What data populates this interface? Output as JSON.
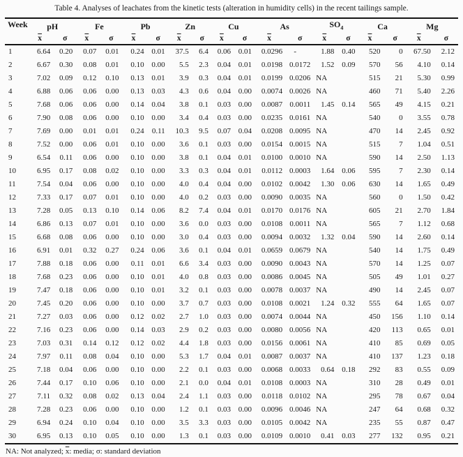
{
  "title": "Table 4. Analyses of leachates from the kinetic tests (alteration in humidity cells) in the recent tailings sample.",
  "table": {
    "week_header": "Week",
    "mean_symbol": "x",
    "sigma_symbol": "σ",
    "na_value": "NA",
    "groups": [
      {
        "label": "pH"
      },
      {
        "label": "Fe"
      },
      {
        "label": "Pb"
      },
      {
        "label": "Zn"
      },
      {
        "label": "Cu"
      },
      {
        "label": "As"
      },
      {
        "label": "SO",
        "subscript": "4"
      },
      {
        "label": "Ca"
      },
      {
        "label": "Mg"
      }
    ],
    "rows": [
      [
        "1",
        "6.64",
        "0.20",
        "0.07",
        "0.01",
        "0.24",
        "0.01",
        "37.5",
        "6.4",
        "0.06",
        "0.01",
        "0.0296",
        "-",
        "1.88",
        "0.40",
        "520",
        "0",
        "67.50",
        "2.12"
      ],
      [
        "2",
        "6.67",
        "0.30",
        "0.08",
        "0.01",
        "0.10",
        "0.00",
        "5.5",
        "2.3",
        "0.04",
        "0.01",
        "0.0198",
        "0.0172",
        "1.52",
        "0.09",
        "570",
        "56",
        "4.10",
        "0.14"
      ],
      [
        "3",
        "7.02",
        "0.09",
        "0.12",
        "0.10",
        "0.13",
        "0.01",
        "3.9",
        "0.3",
        "0.04",
        "0.01",
        "0.0199",
        "0.0206",
        "NA",
        "",
        "515",
        "21",
        "5.30",
        "0.99"
      ],
      [
        "4",
        "6.88",
        "0.06",
        "0.06",
        "0.00",
        "0.13",
        "0.03",
        "4.3",
        "0.6",
        "0.04",
        "0.00",
        "0.0074",
        "0.0026",
        "NA",
        "",
        "460",
        "71",
        "5.40",
        "2.26"
      ],
      [
        "5",
        "7.68",
        "0.06",
        "0.06",
        "0.00",
        "0.14",
        "0.04",
        "3.8",
        "0.1",
        "0.03",
        "0.00",
        "0.0087",
        "0.0011",
        "1.45",
        "0.14",
        "565",
        "49",
        "4.15",
        "0.21"
      ],
      [
        "6",
        "7.90",
        "0.08",
        "0.06",
        "0.00",
        "0.10",
        "0.00",
        "3.4",
        "0.4",
        "0.03",
        "0.00",
        "0.0235",
        "0.0161",
        "NA",
        "",
        "540",
        "0",
        "3.55",
        "0.78"
      ],
      [
        "7",
        "7.69",
        "0.00",
        "0.01",
        "0.01",
        "0.24",
        "0.11",
        "10.3",
        "9.5",
        "0.07",
        "0.04",
        "0.0208",
        "0.0095",
        "NA",
        "",
        "470",
        "14",
        "2.45",
        "0.92"
      ],
      [
        "8",
        "7.52",
        "0.00",
        "0.06",
        "0.01",
        "0.10",
        "0.00",
        "3.6",
        "0.1",
        "0.03",
        "0.00",
        "0.0154",
        "0.0015",
        "NA",
        "",
        "515",
        "7",
        "1.04",
        "0.51"
      ],
      [
        "9",
        "6.54",
        "0.11",
        "0.06",
        "0.00",
        "0.10",
        "0.00",
        "3.8",
        "0.1",
        "0.04",
        "0.01",
        "0.0100",
        "0.0010",
        "NA",
        "",
        "590",
        "14",
        "2.50",
        "1.13"
      ],
      [
        "10",
        "6.95",
        "0.17",
        "0.08",
        "0.02",
        "0.10",
        "0.00",
        "3.3",
        "0.3",
        "0.04",
        "0.01",
        "0.0112",
        "0.0003",
        "1.64",
        "0.06",
        "595",
        "7",
        "2.30",
        "0.14"
      ],
      [
        "11",
        "7.54",
        "0.04",
        "0.06",
        "0.00",
        "0.10",
        "0.00",
        "4.0",
        "0.4",
        "0.04",
        "0.00",
        "0.0102",
        "0.0042",
        "1.30",
        "0.06",
        "630",
        "14",
        "1.65",
        "0.49"
      ],
      [
        "12",
        "7.33",
        "0.17",
        "0.07",
        "0.01",
        "0.10",
        "0.00",
        "4.0",
        "0.2",
        "0.03",
        "0.00",
        "0.0090",
        "0.0035",
        "NA",
        "",
        "560",
        "0",
        "1.50",
        "0.42"
      ],
      [
        "13",
        "7.28",
        "0.05",
        "0.13",
        "0.10",
        "0.14",
        "0.06",
        "8.2",
        "7.4",
        "0.04",
        "0.01",
        "0.0170",
        "0.0176",
        "NA",
        "",
        "605",
        "21",
        "2.70",
        "1.84"
      ],
      [
        "14",
        "6.86",
        "0.13",
        "0.07",
        "0.01",
        "0.10",
        "0.00",
        "3.6",
        "0.0",
        "0.03",
        "0.00",
        "0.0108",
        "0.0011",
        "NA",
        "",
        "565",
        "7",
        "1.12",
        "0.68"
      ],
      [
        "15",
        "6.68",
        "0.08",
        "0.06",
        "0.00",
        "0.10",
        "0.00",
        "3.0",
        "0.4",
        "0.03",
        "0.00",
        "0.0094",
        "0.0032",
        "1.32",
        "0.04",
        "590",
        "14",
        "2.60",
        "0.14"
      ],
      [
        "16",
        "6.91",
        "0.01",
        "0.32",
        "0.27",
        "0.24",
        "0.06",
        "3.6",
        "0.1",
        "0.04",
        "0.01",
        "0.0659",
        "0.0679",
        "NA",
        "",
        "540",
        "14",
        "1.75",
        "0.49"
      ],
      [
        "17",
        "7.88",
        "0.18",
        "0.06",
        "0.00",
        "0.11",
        "0.01",
        "6.6",
        "3.4",
        "0.03",
        "0.00",
        "0.0090",
        "0.0043",
        "NA",
        "",
        "570",
        "14",
        "1.25",
        "0.07"
      ],
      [
        "18",
        "7.68",
        "0.23",
        "0.06",
        "0.00",
        "0.10",
        "0.01",
        "4.0",
        "0.8",
        "0.03",
        "0.00",
        "0.0086",
        "0.0045",
        "NA",
        "",
        "505",
        "49",
        "1.01",
        "0.27"
      ],
      [
        "19",
        "7.47",
        "0.18",
        "0.06",
        "0.00",
        "0.10",
        "0.01",
        "3.2",
        "0.1",
        "0.03",
        "0.00",
        "0.0078",
        "0.0037",
        "NA",
        "",
        "490",
        "14",
        "2.45",
        "0.07"
      ],
      [
        "20",
        "7.45",
        "0.20",
        "0.06",
        "0.00",
        "0.10",
        "0.00",
        "3.7",
        "0.7",
        "0.03",
        "0.00",
        "0.0108",
        "0.0021",
        "1.24",
        "0.32",
        "555",
        "64",
        "1.65",
        "0.07"
      ],
      [
        "21",
        "7.27",
        "0.03",
        "0.06",
        "0.00",
        "0.12",
        "0.02",
        "2.7",
        "1.0",
        "0.03",
        "0.00",
        "0.0074",
        "0.0044",
        "NA",
        "",
        "450",
        "156",
        "1.10",
        "0.14"
      ],
      [
        "22",
        "7.16",
        "0.23",
        "0.06",
        "0.00",
        "0.14",
        "0.03",
        "2.9",
        "0.2",
        "0.03",
        "0.00",
        "0.0080",
        "0.0056",
        "NA",
        "",
        "420",
        "113",
        "0.65",
        "0.01"
      ],
      [
        "23",
        "7.03",
        "0.31",
        "0.14",
        "0.12",
        "0.12",
        "0.02",
        "4.4",
        "1.8",
        "0.03",
        "0.00",
        "0.0156",
        "0.0061",
        "NA",
        "",
        "410",
        "85",
        "0.69",
        "0.05"
      ],
      [
        "24",
        "7.97",
        "0.11",
        "0.08",
        "0.04",
        "0.10",
        "0.00",
        "5.3",
        "1.7",
        "0.04",
        "0.01",
        "0.0087",
        "0.0037",
        "NA",
        "",
        "410",
        "137",
        "1.23",
        "0.18"
      ],
      [
        "25",
        "7.18",
        "0.04",
        "0.06",
        "0.00",
        "0.10",
        "0.00",
        "2.2",
        "0.1",
        "0.03",
        "0.00",
        "0.0068",
        "0.0033",
        "0.64",
        "0.18",
        "292",
        "83",
        "0.55",
        "0.09"
      ],
      [
        "26",
        "7.44",
        "0.17",
        "0.10",
        "0.06",
        "0.10",
        "0.00",
        "2.1",
        "0.0",
        "0.04",
        "0.01",
        "0.0108",
        "0.0003",
        "NA",
        "",
        "310",
        "28",
        "0.49",
        "0.01"
      ],
      [
        "27",
        "7.11",
        "0.32",
        "0.08",
        "0.02",
        "0.13",
        "0.04",
        "2.4",
        "1.1",
        "0.03",
        "0.00",
        "0.0118",
        "0.0102",
        "NA",
        "",
        "295",
        "78",
        "0.67",
        "0.04"
      ],
      [
        "28",
        "7.28",
        "0.23",
        "0.06",
        "0.00",
        "0.10",
        "0.00",
        "1.2",
        "0.1",
        "0.03",
        "0.00",
        "0.0096",
        "0.0046",
        "NA",
        "",
        "247",
        "64",
        "0.68",
        "0.32"
      ],
      [
        "29",
        "6.94",
        "0.24",
        "0.10",
        "0.04",
        "0.10",
        "0.00",
        "3.5",
        "3.3",
        "0.03",
        "0.00",
        "0.0105",
        "0.0042",
        "NA",
        "",
        "235",
        "55",
        "0.87",
        "0.47"
      ],
      [
        "30",
        "6.95",
        "0.13",
        "0.10",
        "0.05",
        "0.10",
        "0.00",
        "1.3",
        "0.1",
        "0.03",
        "0.00",
        "0.0109",
        "0.0010",
        "0.41",
        "0.03",
        "277",
        "132",
        "0.95",
        "0.21"
      ]
    ]
  },
  "footnote": {
    "before": "NA: Not analyzed; ",
    "mean": "x",
    "after": ": media; σ: standard deviation"
  }
}
